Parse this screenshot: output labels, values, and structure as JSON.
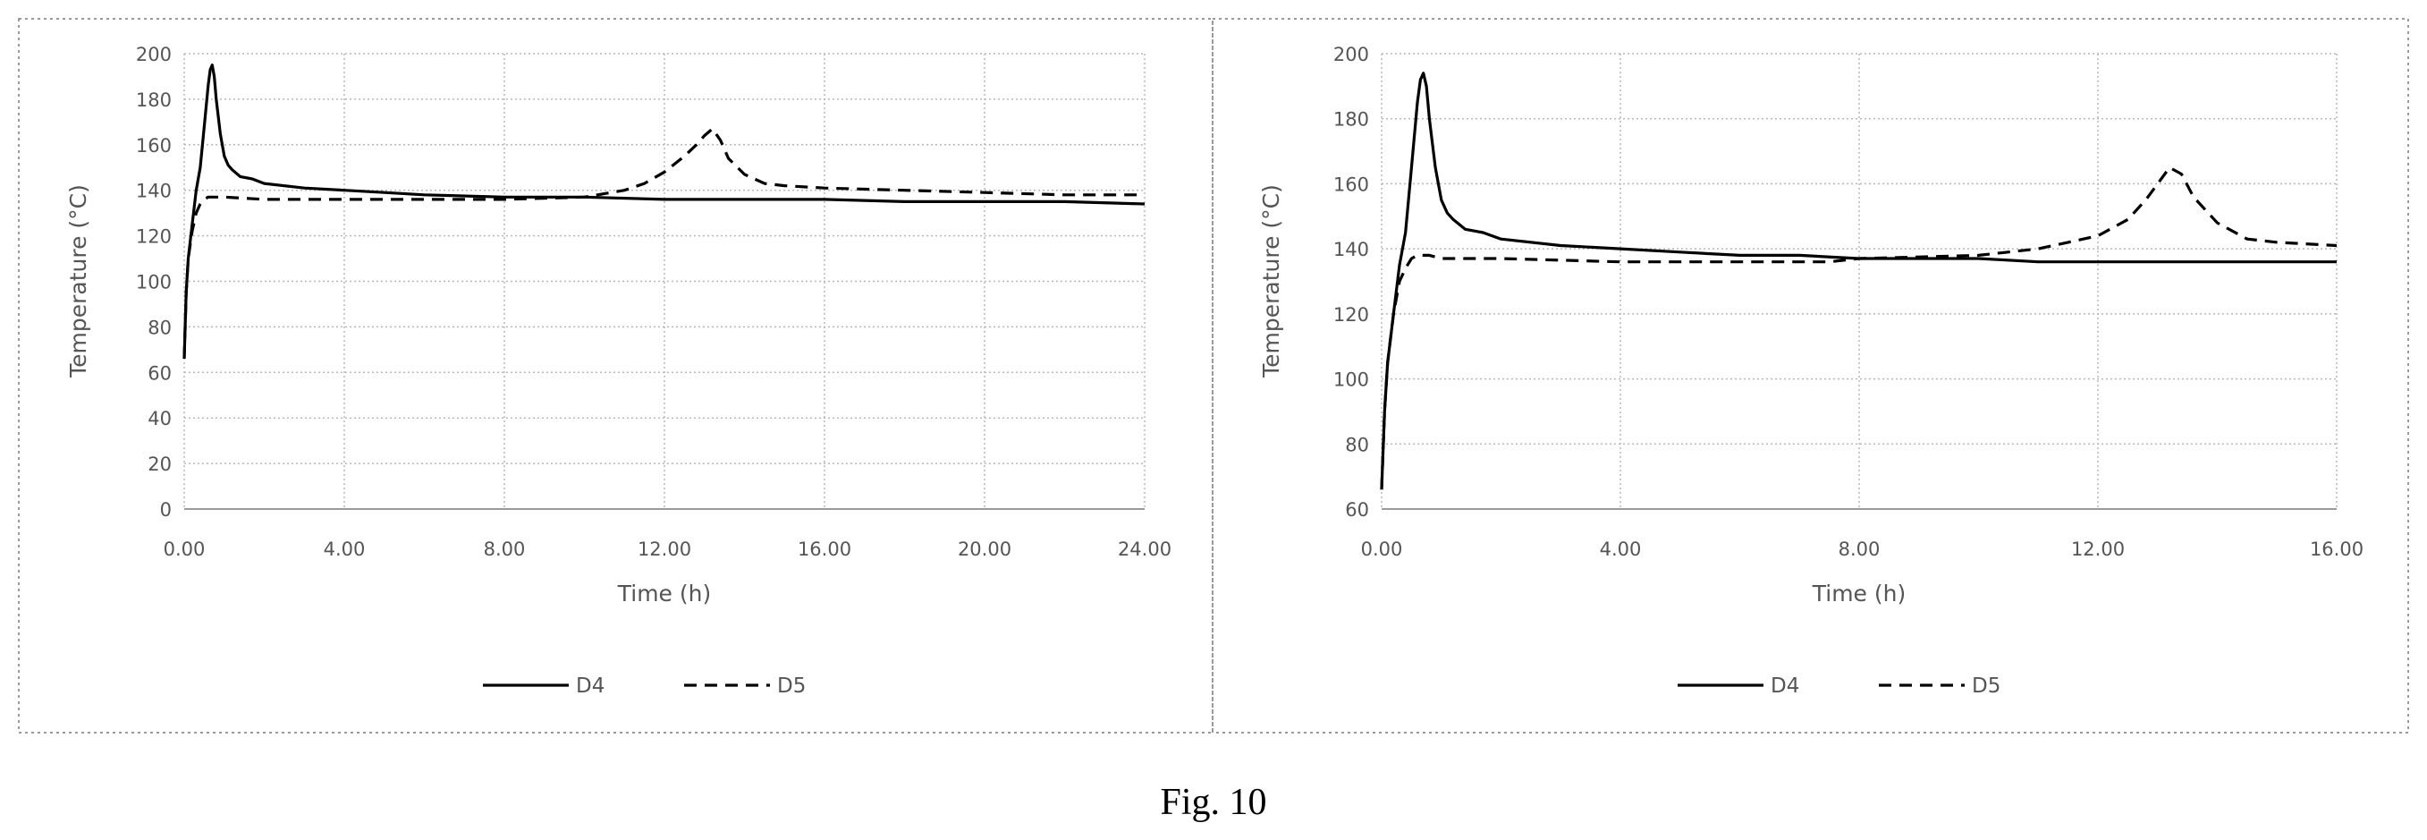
{
  "figure": {
    "caption": "Fig. 10"
  },
  "chart_data": [
    {
      "type": "line",
      "title": "",
      "xlabel": "Time (h)",
      "ylabel": "Temperature (°C)",
      "xlim": [
        0,
        24
      ],
      "ylim": [
        0,
        200
      ],
      "x_tick_labels": [
        "0.00",
        "4.00",
        "8.00",
        "12.00",
        "16.00",
        "20.00",
        "24.00"
      ],
      "y_tick_labels": [
        "0",
        "20",
        "40",
        "60",
        "80",
        "100",
        "120",
        "140",
        "160",
        "180",
        "200"
      ],
      "grid": true,
      "legend_position": "bottom",
      "series": [
        {
          "name": "D4",
          "style": "solid",
          "color": "#000000",
          "x": [
            0.0,
            0.05,
            0.1,
            0.2,
            0.3,
            0.4,
            0.5,
            0.6,
            0.65,
            0.7,
            0.75,
            0.8,
            0.9,
            1.0,
            1.1,
            1.2,
            1.4,
            1.7,
            2.0,
            3.0,
            4.0,
            5.0,
            6.0,
            8.0,
            10.0,
            12.0,
            14.0,
            16.0,
            18.0,
            20.0,
            22.0,
            24.0
          ],
          "y": [
            66,
            95,
            110,
            125,
            140,
            150,
            168,
            186,
            193,
            195,
            190,
            180,
            165,
            155,
            151,
            149,
            146,
            145,
            143,
            141,
            140,
            139,
            138,
            137,
            137,
            136,
            136,
            136,
            135,
            135,
            135,
            134
          ]
        },
        {
          "name": "D5",
          "style": "dashed",
          "color": "#000000",
          "x": [
            0.0,
            0.05,
            0.1,
            0.2,
            0.3,
            0.4,
            0.5,
            0.6,
            0.8,
            1.0,
            2.0,
            4.0,
            6.0,
            8.0,
            10.0,
            11.0,
            11.5,
            12.0,
            12.5,
            12.8,
            13.0,
            13.2,
            13.4,
            13.6,
            14.0,
            14.5,
            15.0,
            16.0,
            18.0,
            20.0,
            22.0,
            24.0
          ],
          "y": [
            66,
            95,
            110,
            122,
            130,
            134,
            136,
            137,
            137,
            137,
            136,
            136,
            136,
            136,
            137,
            140,
            143,
            148,
            155,
            160,
            164,
            167,
            162,
            154,
            147,
            143,
            142,
            141,
            140,
            139,
            138,
            138
          ]
        }
      ]
    },
    {
      "type": "line",
      "title": "",
      "xlabel": "Time (h)",
      "ylabel": "Temperature (°C)",
      "xlim": [
        0,
        16
      ],
      "ylim": [
        60,
        200
      ],
      "x_tick_labels": [
        "0.00",
        "4.00",
        "8.00",
        "12.00",
        "16.00"
      ],
      "y_tick_labels": [
        "60",
        "80",
        "100",
        "120",
        "140",
        "160",
        "180",
        "200"
      ],
      "grid": true,
      "legend_position": "bottom",
      "series": [
        {
          "name": "D4",
          "style": "solid",
          "color": "#000000",
          "x": [
            0.0,
            0.05,
            0.1,
            0.2,
            0.3,
            0.4,
            0.5,
            0.6,
            0.65,
            0.7,
            0.75,
            0.8,
            0.9,
            1.0,
            1.1,
            1.2,
            1.4,
            1.7,
            2.0,
            3.0,
            4.0,
            5.0,
            6.0,
            7.0,
            8.0,
            9.0,
            10.0,
            11.0,
            12.0,
            13.0,
            14.0,
            15.0,
            16.0
          ],
          "y": [
            66,
            90,
            105,
            120,
            135,
            145,
            165,
            185,
            192,
            194,
            190,
            180,
            165,
            155,
            151,
            149,
            146,
            145,
            143,
            141,
            140,
            139,
            138,
            138,
            137,
            137,
            137,
            136,
            136,
            136,
            136,
            136,
            136
          ]
        },
        {
          "name": "D5",
          "style": "dashed",
          "color": "#000000",
          "x": [
            0.0,
            0.05,
            0.1,
            0.2,
            0.3,
            0.4,
            0.5,
            0.6,
            0.8,
            1.0,
            2.0,
            4.0,
            6.0,
            7.5,
            8.0,
            10.0,
            11.0,
            11.5,
            12.0,
            12.5,
            12.8,
            13.0,
            13.2,
            13.4,
            13.6,
            14.0,
            14.5,
            15.0,
            16.0
          ],
          "y": [
            66,
            90,
            105,
            120,
            130,
            134,
            137,
            138,
            138,
            137,
            137,
            136,
            136,
            136,
            137,
            138,
            140,
            142,
            144,
            149,
            155,
            160,
            165,
            163,
            156,
            148,
            143,
            142,
            141
          ]
        }
      ]
    }
  ]
}
